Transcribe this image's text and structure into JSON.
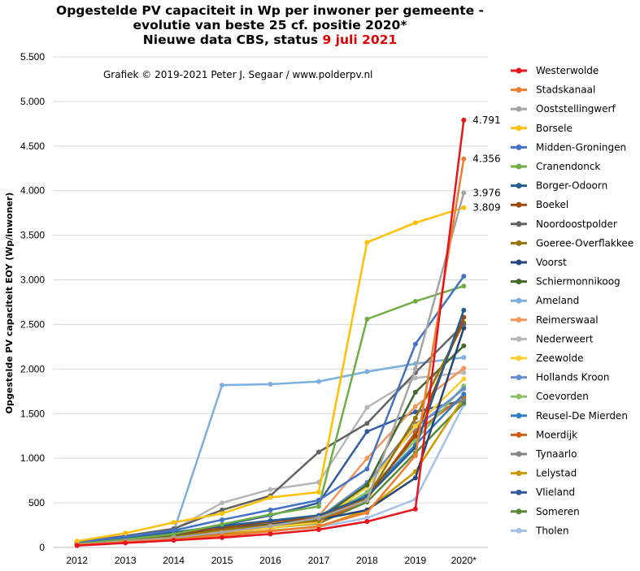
{
  "title": {
    "line1": "Opgestelde PV capaciteit in Wp per inwoner per gemeente -",
    "line2": "evolutie  van beste 25 cf. positie  2020*",
    "line3_prefix": "Nieuwe data CBS, status ",
    "line3_date": "9 juli  2021"
  },
  "copyright": "Grafiek  © 2019-2021 Peter J. Segaar / www.polderpv.nl",
  "chart_data": {
    "type": "line",
    "ylabel": "Opgestelde PV capaciteit EOY (Wp/inwoner)",
    "xlabel": "",
    "ylim": [
      0,
      5500
    ],
    "ytick_values": [
      0,
      500,
      1000,
      1500,
      2000,
      2500,
      3000,
      3500,
      4000,
      4500,
      5000,
      5500
    ],
    "ytick_labels": [
      "0",
      "500",
      "1.000",
      "1.500",
      "2.000",
      "2.500",
      "3.000",
      "3.500",
      "4.000",
      "4.500",
      "5.000",
      "5.500"
    ],
    "categories": [
      "2012",
      "2013",
      "2014",
      "2015",
      "2016",
      "2017",
      "2018",
      "2019",
      "2020*"
    ],
    "grid": "horizontal",
    "legend_position": "right",
    "end_labels": [
      {
        "series": "Westerwolde",
        "text": "4.791"
      },
      {
        "series": "Stadskanaal",
        "text": "4.356"
      },
      {
        "series": "Ooststellingwerf",
        "text": "3.976"
      },
      {
        "series": "Borsele",
        "text": "3.809"
      }
    ],
    "series": [
      {
        "name": "Westerwolde",
        "color": "#e8141b",
        "values": [
          20,
          50,
          80,
          110,
          150,
          200,
          290,
          430,
          4791
        ]
      },
      {
        "name": "Stadskanaal",
        "color": "#ed7d31",
        "values": [
          30,
          60,
          90,
          130,
          180,
          240,
          390,
          1030,
          4356
        ]
      },
      {
        "name": "Ooststellingwerf",
        "color": "#a5a5a5",
        "values": [
          30,
          70,
          110,
          170,
          240,
          330,
          530,
          2000,
          3976
        ]
      },
      {
        "name": "Borsele",
        "color": "#ffc000",
        "values": [
          70,
          160,
          280,
          380,
          560,
          620,
          3420,
          3640,
          3809
        ]
      },
      {
        "name": "Midden-Groningen",
        "color": "#4472c4",
        "values": [
          60,
          120,
          190,
          310,
          420,
          530,
          880,
          2280,
          3040
        ]
      },
      {
        "name": "Cranendonck",
        "color": "#70ad47",
        "values": [
          40,
          90,
          150,
          260,
          370,
          460,
          2560,
          2760,
          2930
        ]
      },
      {
        "name": "Borger-Odoorn",
        "color": "#255e91",
        "values": [
          50,
          110,
          170,
          240,
          300,
          360,
          570,
          1120,
          2660
        ]
      },
      {
        "name": "Boekel",
        "color": "#9e480e",
        "values": [
          40,
          90,
          150,
          220,
          290,
          330,
          570,
          1250,
          2580
        ]
      },
      {
        "name": "Noordoostpolder",
        "color": "#636363",
        "values": [
          60,
          130,
          210,
          420,
          580,
          1070,
          1390,
          1960,
          2500
        ]
      },
      {
        "name": "Goeree-Overflakkee",
        "color": "#997300",
        "values": [
          30,
          70,
          120,
          200,
          250,
          300,
          560,
          1450,
          2520
        ]
      },
      {
        "name": "Voorst",
        "color": "#264478",
        "values": [
          40,
          90,
          150,
          210,
          260,
          310,
          420,
          780,
          2460
        ]
      },
      {
        "name": "Schiermonnikoog",
        "color": "#43682b",
        "values": [
          30,
          80,
          140,
          200,
          260,
          320,
          700,
          1740,
          2260
        ]
      },
      {
        "name": "Ameland",
        "color": "#7cafdd",
        "values": [
          50,
          110,
          180,
          1820,
          1830,
          1860,
          1970,
          2060,
          2130
        ]
      },
      {
        "name": "Reimerswaal",
        "color": "#f1975a",
        "values": [
          40,
          90,
          150,
          210,
          280,
          350,
          1000,
          1580,
          2010
        ]
      },
      {
        "name": "Nederweert",
        "color": "#b7b7b7",
        "values": [
          50,
          110,
          200,
          500,
          650,
          730,
          1570,
          1900,
          1960
        ]
      },
      {
        "name": "Zeewolde",
        "color": "#ffcd33",
        "values": [
          30,
          70,
          120,
          170,
          220,
          280,
          680,
          1360,
          1890
        ]
      },
      {
        "name": "Hollands Kroon",
        "color": "#698ed0",
        "values": [
          40,
          90,
          140,
          200,
          260,
          330,
          730,
          1340,
          1780
        ]
      },
      {
        "name": "Coevorden",
        "color": "#8cc168",
        "values": [
          30,
          70,
          120,
          180,
          240,
          300,
          620,
          1200,
          1810
        ]
      },
      {
        "name": "Reusel-De Mierden",
        "color": "#327dc2",
        "values": [
          40,
          90,
          150,
          220,
          280,
          350,
          600,
          1150,
          1720
        ]
      },
      {
        "name": "Moerdijk",
        "color": "#d26012",
        "values": [
          30,
          70,
          110,
          160,
          220,
          280,
          540,
          1290,
          1700
        ]
      },
      {
        "name": "Tynaarlo",
        "color": "#848484",
        "values": [
          30,
          70,
          120,
          170,
          230,
          290,
          720,
          1390,
          1660
        ]
      },
      {
        "name": "Lelystad",
        "color": "#cc9a00",
        "values": [
          30,
          60,
          100,
          140,
          190,
          230,
          420,
          850,
          1680
        ]
      },
      {
        "name": "Vlieland",
        "color": "#335aa1",
        "values": [
          60,
          110,
          160,
          250,
          360,
          500,
          1300,
          1520,
          1650
        ]
      },
      {
        "name": "Someren",
        "color": "#5a8a39",
        "values": [
          30,
          70,
          110,
          170,
          220,
          270,
          510,
          1060,
          1620
        ]
      },
      {
        "name": "Tholen",
        "color": "#a5c0e6",
        "values": [
          30,
          60,
          100,
          140,
          180,
          230,
          330,
          540,
          1600
        ]
      }
    ]
  }
}
